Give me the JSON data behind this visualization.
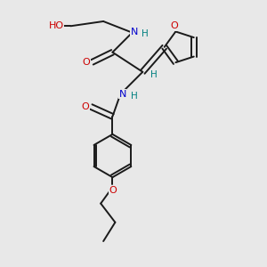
{
  "bg_color": "#e8e8e8",
  "bond_color": "#1a1a1a",
  "N_color": "#0000cc",
  "O_color": "#cc0000",
  "H_color": "#008080",
  "figsize": [
    3.0,
    3.0
  ],
  "dpi": 100,
  "xlim": [
    0,
    10
  ],
  "ylim": [
    0,
    10
  ]
}
